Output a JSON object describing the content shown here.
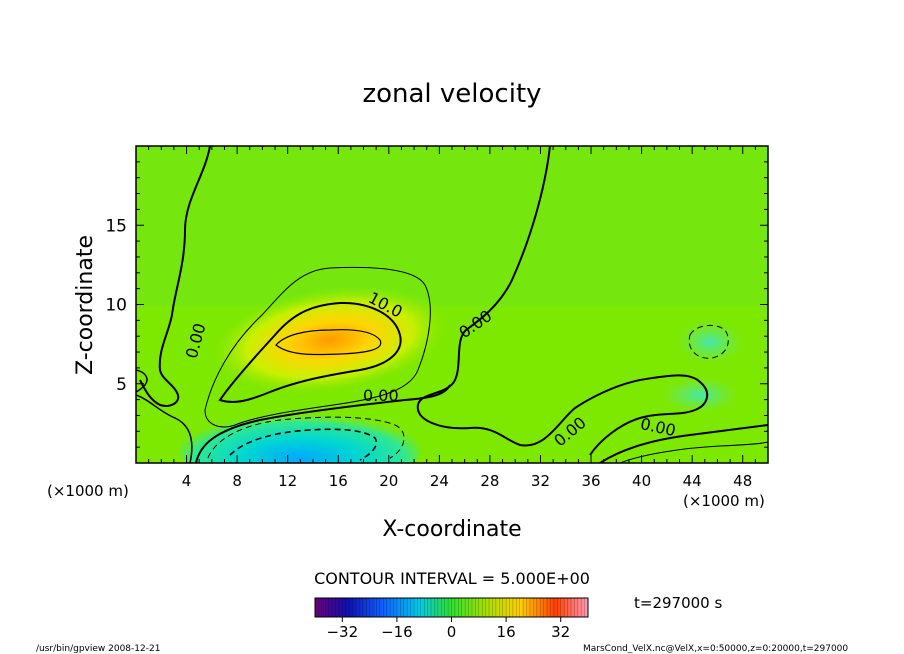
{
  "chart_data": {
    "type": "contour",
    "title": "zonal velocity",
    "xlabel": "X-coordinate",
    "ylabel": "Z-coordinate",
    "x_unit": "(×1000 m)",
    "y_unit": "(×1000 m)",
    "xlim": [
      0,
      50
    ],
    "ylim": [
      0,
      20
    ],
    "x_ticks": [
      4,
      8,
      12,
      16,
      20,
      24,
      28,
      32,
      36,
      40,
      44,
      48
    ],
    "y_ticks": [
      5,
      10,
      15
    ],
    "contour_interval_label": "CONTOUR INTERVAL = 5.000E+00",
    "contour_labels": [
      {
        "text": "10.0",
        "x": 19.3,
        "y": 9.0
      },
      {
        "text": "0.00",
        "x": 19.0,
        "y": 4.2
      },
      {
        "text": "0.00",
        "x": 3.0,
        "y": 7.0
      },
      {
        "text": "0.00",
        "x": 27.0,
        "y": 8.9
      },
      {
        "text": "0.00",
        "x": 34.2,
        "y": 2.2
      },
      {
        "text": "0.00",
        "x": 41.5,
        "y": 2.4
      }
    ],
    "colorbar": {
      "min": -40,
      "max": 40,
      "ticks": [
        -32,
        -16,
        0,
        16,
        32
      ]
    },
    "time_label": "t=297000 s",
    "footer_left": "/usr/bin/gpview  2008-12-21",
    "footer_right": "MarsCond_VelX.nc@VelX,x=0:50000,z=0:20000,t=297000"
  }
}
